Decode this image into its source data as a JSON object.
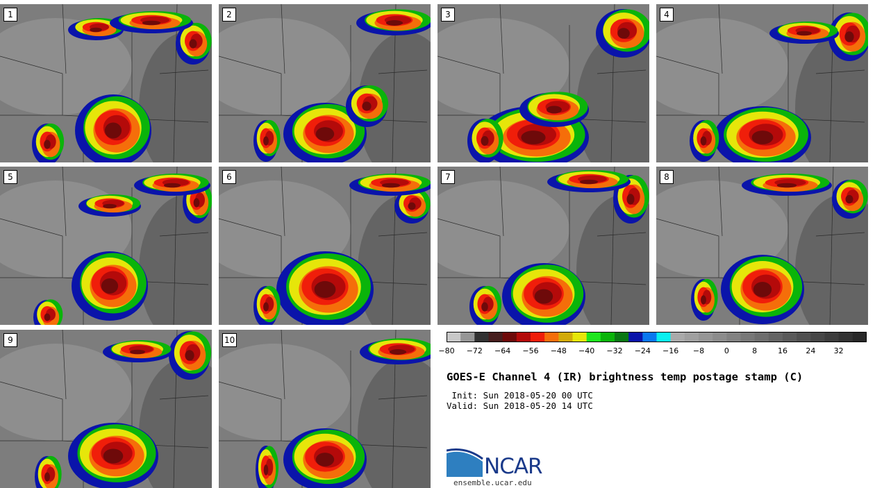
{
  "panels": [
    {
      "label": "1"
    },
    {
      "label": "2"
    },
    {
      "label": "3"
    },
    {
      "label": "4"
    },
    {
      "label": "5"
    },
    {
      "label": "6"
    },
    {
      "label": "7"
    },
    {
      "label": "8"
    },
    {
      "label": "9"
    },
    {
      "label": "10"
    }
  ],
  "colorbar": {
    "min": -80,
    "max": 40,
    "step": 4,
    "tick_labels": [
      "−80",
      "−72",
      "−64",
      "−56",
      "−48",
      "−40",
      "−32",
      "−24",
      "−16",
      "−8",
      "0",
      "8",
      "16",
      "24",
      "32"
    ],
    "colors": [
      "#c8c8c8",
      "#969696",
      "#323232",
      "#461e1e",
      "#6e0a0a",
      "#b40a0a",
      "#f01e0a",
      "#f56e0a",
      "#d2aa0a",
      "#e6e60a",
      "#1ee61e",
      "#0ab40a",
      "#0a7814",
      "#0a14aa",
      "#0a78f0",
      "#0af0f0",
      "#aaaaaa",
      "#a0a0a0",
      "#969696",
      "#8c8c8c",
      "#828282",
      "#787878",
      "#6e6e6e",
      "#646464",
      "#5a5a5a",
      "#505050",
      "#464646",
      "#3c3c3c",
      "#323232",
      "#282828"
    ]
  },
  "title": "GOES-E Channel 4 (IR) brightness temp postage stamp (C)",
  "init_text": " Init: Sun 2018-05-20 00 UTC",
  "valid_text": "Valid: Sun 2018-05-20 14 UTC",
  "logo": {
    "name": "NCAR",
    "url": "ensemble.ucar.edu",
    "color": "#1a3a8a",
    "accent": "#2e7fc0"
  }
}
